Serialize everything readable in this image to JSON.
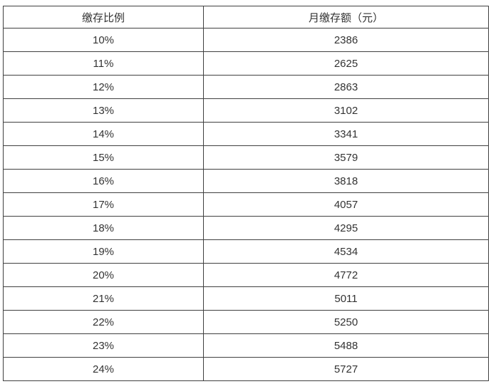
{
  "table": {
    "columns": [
      "缴存比例",
      "月缴存额（元）"
    ],
    "rows": [
      [
        "10%",
        "2386"
      ],
      [
        "11%",
        "2625"
      ],
      [
        "12%",
        "2863"
      ],
      [
        "13%",
        "3102"
      ],
      [
        "14%",
        "3341"
      ],
      [
        "15%",
        "3579"
      ],
      [
        "16%",
        "3818"
      ],
      [
        "17%",
        "4057"
      ],
      [
        "18%",
        "4295"
      ],
      [
        "19%",
        "4534"
      ],
      [
        "20%",
        "4772"
      ],
      [
        "21%",
        "5011"
      ],
      [
        "22%",
        "5250"
      ],
      [
        "23%",
        "5488"
      ],
      [
        "24%",
        "5727"
      ]
    ],
    "colors": {
      "border": "#404040",
      "text": "#333333",
      "background": "#ffffff"
    }
  }
}
